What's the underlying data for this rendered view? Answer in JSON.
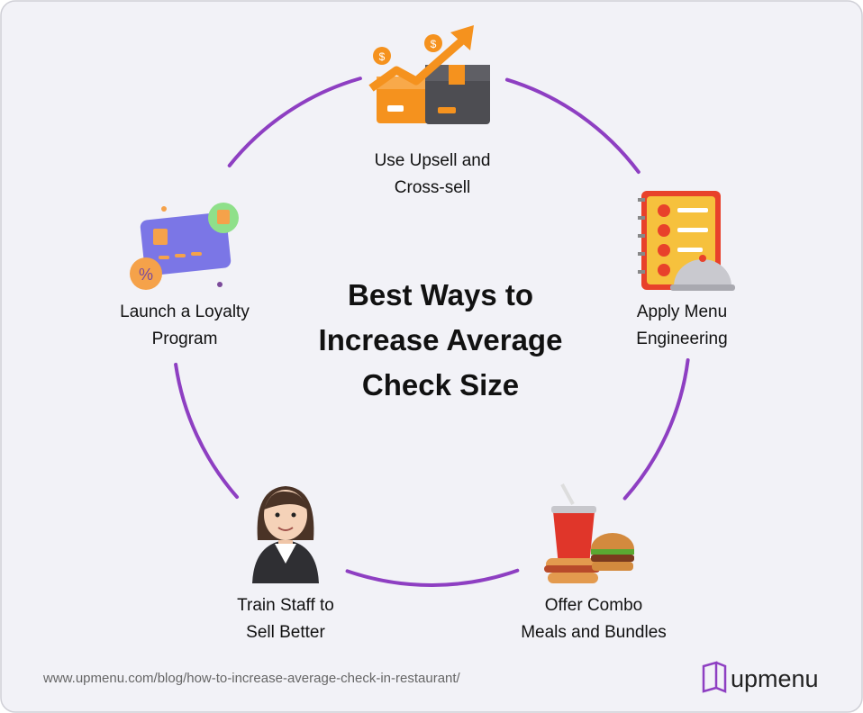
{
  "title": {
    "lines": [
      "Best Ways to",
      "Increase Average",
      "Check Size"
    ]
  },
  "nodes": [
    {
      "lines": [
        "Use Upsell and",
        "Cross-sell"
      ]
    },
    {
      "lines": [
        "Apply Menu",
        "Engineering"
      ]
    },
    {
      "lines": [
        "Offer Combo",
        "Meals and Bundles"
      ]
    },
    {
      "lines": [
        "Train Staff to",
        "Sell Better"
      ]
    },
    {
      "lines": [
        "Launch a Loyalty",
        "Program"
      ]
    }
  ],
  "footer": {
    "url": "www.upmenu.com/blog/how-to-increase-average-check-in-restaurant/",
    "brand": "upmenu"
  }
}
